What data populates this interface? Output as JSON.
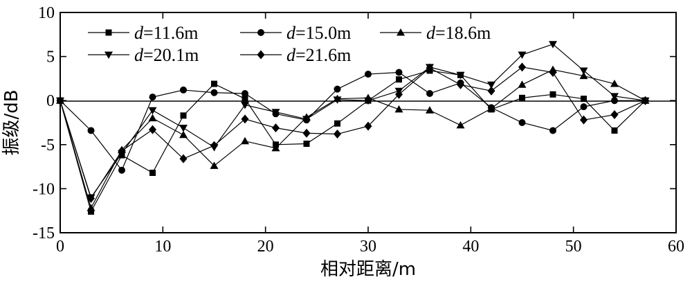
{
  "chart_data": {
    "type": "line",
    "xlabel": "相对距离/m",
    "ylabel": "振级/dB",
    "xlim": [
      0,
      60
    ],
    "ylim": [
      -15,
      10
    ],
    "xticks": [
      "0",
      "10",
      "20",
      "30",
      "40",
      "50",
      "60"
    ],
    "yticks": [
      "-15",
      "-10",
      "-5",
      "0",
      "5",
      "10"
    ],
    "grid": false,
    "zero_line": true,
    "legend_position": "top-left",
    "x": [
      0,
      3,
      6,
      9,
      12,
      15,
      18,
      21,
      24,
      27,
      30,
      33,
      36,
      39,
      42,
      45,
      48,
      51,
      54,
      57
    ],
    "series": [
      {
        "name": "=11.6m",
        "var": "d",
        "marker": "square",
        "values": [
          0,
          -12.6,
          -6.2,
          -8.2,
          -1.7,
          1.9,
          0.2,
          -5.0,
          -4.9,
          -2.6,
          0.0,
          2.4,
          3.4,
          2.9,
          -1.0,
          0.3,
          0.7,
          0.2,
          -3.4,
          0.0
        ]
      },
      {
        "name": "=15.0m",
        "var": "d",
        "marker": "circle",
        "values": [
          0,
          -3.4,
          -7.9,
          0.4,
          1.2,
          0.9,
          0.8,
          -1.5,
          -2.2,
          1.3,
          3.0,
          3.2,
          0.8,
          2.0,
          -0.8,
          -2.5,
          -3.4,
          -0.7,
          0.0,
          0.0
        ]
      },
      {
        "name": "=18.6m",
        "var": "d",
        "marker": "triangle-up",
        "values": [
          0,
          -12.2,
          -5.6,
          -2.0,
          -3.9,
          -7.4,
          -4.6,
          -5.4,
          -1.9,
          0.2,
          0.3,
          -1.0,
          -1.1,
          -2.8,
          -0.9,
          1.8,
          3.5,
          2.8,
          1.9,
          0.0
        ]
      },
      {
        "name": "=20.1m",
        "var": "d",
        "marker": "triangle-down",
        "values": [
          0,
          -11.0,
          -6.0,
          -1.1,
          -3.1,
          -5.3,
          -0.5,
          -1.3,
          -2.1,
          0.1,
          0.0,
          1.1,
          3.8,
          2.9,
          1.8,
          5.2,
          6.4,
          3.4,
          0.5,
          0.0
        ]
      },
      {
        "name": "=21.6m",
        "var": "d",
        "marker": "diamond",
        "values": [
          0,
          -11.1,
          -5.7,
          -3.3,
          -6.6,
          -5.1,
          -2.1,
          -3.1,
          -3.7,
          -3.8,
          -2.9,
          0.7,
          3.7,
          1.8,
          1.1,
          3.8,
          3.2,
          -2.2,
          -1.6,
          0.0
        ]
      }
    ],
    "colors": {
      "line": "#000000",
      "marker": "#000000",
      "background": "#ffffff"
    }
  }
}
